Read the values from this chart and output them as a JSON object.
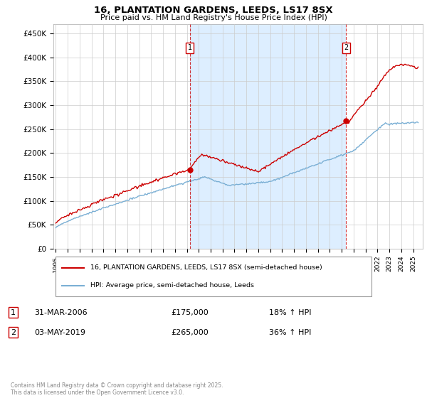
{
  "title_line1": "16, PLANTATION GARDENS, LEEDS, LS17 8SX",
  "title_line2": "Price paid vs. HM Land Registry's House Price Index (HPI)",
  "ylabel_ticks": [
    "£0",
    "£50K",
    "£100K",
    "£150K",
    "£200K",
    "£250K",
    "£300K",
    "£350K",
    "£400K",
    "£450K"
  ],
  "ytick_vals": [
    0,
    50000,
    100000,
    150000,
    200000,
    250000,
    300000,
    350000,
    400000,
    450000
  ],
  "ylim": [
    0,
    470000
  ],
  "xlim_start": 1994.8,
  "xlim_end": 2025.8,
  "xticks": [
    1995,
    1996,
    1997,
    1998,
    1999,
    2000,
    2001,
    2002,
    2003,
    2004,
    2005,
    2006,
    2007,
    2008,
    2009,
    2010,
    2011,
    2012,
    2013,
    2014,
    2015,
    2016,
    2017,
    2018,
    2019,
    2020,
    2021,
    2022,
    2023,
    2024,
    2025
  ],
  "property_color": "#cc0000",
  "hpi_color": "#7aafd4",
  "vline_color": "#cc0000",
  "shade_color": "#ddeeff",
  "marker1_x": 2006.25,
  "marker2_x": 2019.37,
  "legend_property": "16, PLANTATION GARDENS, LEEDS, LS17 8SX (semi-detached house)",
  "legend_hpi": "HPI: Average price, semi-detached house, Leeds",
  "annotation1_num": "1",
  "annotation1_date": "31-MAR-2006",
  "annotation1_price": "£175,000",
  "annotation1_hpi": "18% ↑ HPI",
  "annotation2_num": "2",
  "annotation2_date": "03-MAY-2019",
  "annotation2_price": "£265,000",
  "annotation2_hpi": "36% ↑ HPI",
  "footer": "Contains HM Land Registry data © Crown copyright and database right 2025.\nThis data is licensed under the Open Government Licence v3.0.",
  "background_color": "#ffffff",
  "grid_color": "#cccccc"
}
